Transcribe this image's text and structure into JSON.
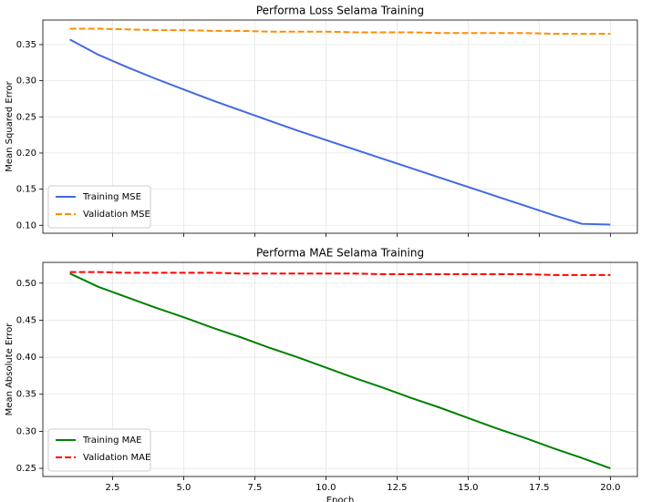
{
  "chart_data": [
    {
      "type": "line",
      "title": "Performa Loss Selama Training",
      "y_label": "Mean Squared Error",
      "x": [
        1,
        2,
        3,
        4,
        5,
        6,
        7,
        8,
        9,
        10,
        11,
        12,
        13,
        14,
        15,
        16,
        17,
        18,
        19,
        20
      ],
      "series": [
        {
          "name": "Training MSE",
          "color": "#4169e1",
          "dash": "solid",
          "values": [
            0.357,
            0.336,
            0.319,
            0.303,
            0.288,
            0.273,
            0.259,
            0.245,
            0.231,
            0.218,
            0.205,
            0.192,
            0.179,
            0.166,
            0.153,
            0.14,
            0.127,
            0.114,
            0.102,
            0.101
          ]
        },
        {
          "name": "Validation MSE",
          "color": "#ff8c00",
          "dash": "dashed",
          "values": [
            0.372,
            0.372,
            0.371,
            0.37,
            0.37,
            0.369,
            0.369,
            0.368,
            0.368,
            0.368,
            0.367,
            0.367,
            0.367,
            0.366,
            0.366,
            0.366,
            0.366,
            0.365,
            0.365,
            0.365
          ]
        }
      ],
      "xlim": [
        0.05,
        20.95
      ],
      "xticks": [
        2.5,
        5,
        7.5,
        10,
        12.5,
        15,
        17.5,
        20
      ],
      "ylim": [
        0.089,
        0.384
      ],
      "yticks": [
        {
          "value": 0.1,
          "label": "0.10"
        },
        {
          "value": 0.15,
          "label": "0.15"
        },
        {
          "value": 0.2,
          "label": "0.20"
        },
        {
          "value": 0.25,
          "label": "0.25"
        },
        {
          "value": 0.3,
          "label": "0.30"
        },
        {
          "value": 0.35,
          "label": "0.35"
        }
      ],
      "grid": true,
      "legend": "lower left"
    },
    {
      "type": "line",
      "title": "Performa MAE Selama Training",
      "x_label": "Epoch",
      "y_label": "Mean Absolute Error",
      "x": [
        1,
        2,
        3,
        4,
        5,
        6,
        7,
        8,
        9,
        10,
        11,
        12,
        13,
        14,
        15,
        16,
        17,
        18,
        19,
        20
      ],
      "series": [
        {
          "name": "Training MAE",
          "color": "#008000",
          "dash": "solid",
          "values": [
            0.513,
            0.495,
            0.481,
            0.467,
            0.454,
            0.44,
            0.427,
            0.413,
            0.4,
            0.386,
            0.372,
            0.359,
            0.345,
            0.332,
            0.318,
            0.304,
            0.291,
            0.277,
            0.264,
            0.25
          ]
        },
        {
          "name": "Validation MAE",
          "color": "#ff0000",
          "dash": "dashed",
          "values": [
            0.515,
            0.515,
            0.514,
            0.514,
            0.514,
            0.514,
            0.513,
            0.513,
            0.513,
            0.513,
            0.513,
            0.512,
            0.512,
            0.512,
            0.512,
            0.512,
            0.512,
            0.511,
            0.511,
            0.511
          ]
        }
      ],
      "xlim": [
        0.05,
        20.95
      ],
      "xticks": [
        {
          "value": 2.5,
          "label": "2.5"
        },
        {
          "value": 5,
          "label": "5.0"
        },
        {
          "value": 7.5,
          "label": "7.5"
        },
        {
          "value": 10,
          "label": "10.0"
        },
        {
          "value": 12.5,
          "label": "12.5"
        },
        {
          "value": 15,
          "label": "15.0"
        },
        {
          "value": 17.5,
          "label": "17.5"
        },
        {
          "value": 20,
          "label": "20.0"
        }
      ],
      "ylim": [
        0.239,
        0.528
      ],
      "yticks": [
        {
          "value": 0.25,
          "label": "0.25"
        },
        {
          "value": 0.3,
          "label": "0.30"
        },
        {
          "value": 0.35,
          "label": "0.35"
        },
        {
          "value": 0.4,
          "label": "0.40"
        },
        {
          "value": 0.45,
          "label": "0.45"
        },
        {
          "value": 0.5,
          "label": "0.50"
        }
      ],
      "grid": true,
      "legend": "lower left"
    }
  ]
}
